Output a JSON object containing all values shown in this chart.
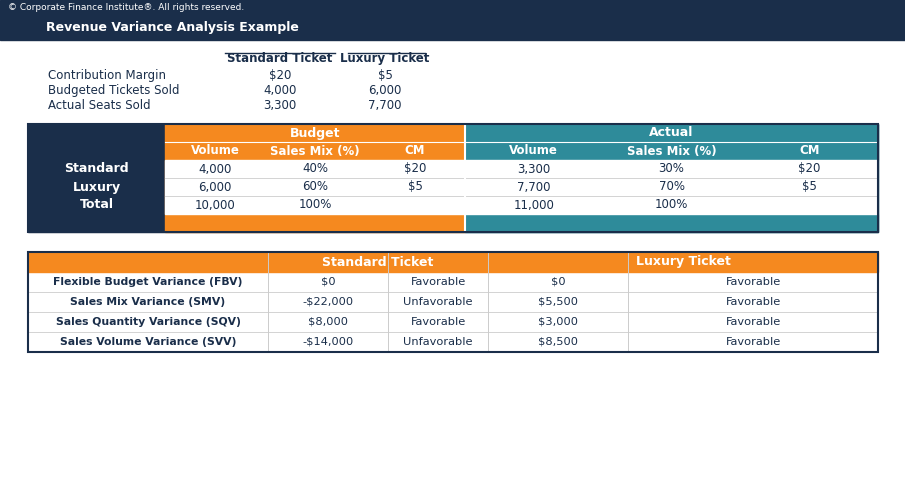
{
  "copyright_text": "© Corporate Finance Institute®. All rights reserved.",
  "title": "Revenue Variance Analysis Example",
  "orange_color": "#f5891f",
  "teal_color": "#2e8b9a",
  "dark_navy": "#1a2e4a",
  "white": "#ffffff",
  "light_text": "#1a2e4a",
  "intro_data": [
    [
      "Contribution Margin",
      "$20",
      "$5"
    ],
    [
      "Budgeted Tickets Sold",
      "4,000",
      "6,000"
    ],
    [
      "Actual Seats Sold",
      "3,300",
      "7,700"
    ]
  ],
  "table1_rows": [
    [
      "Standard",
      "4,000",
      "40%",
      "$20",
      "3,300",
      "30%",
      "$20"
    ],
    [
      "Luxury",
      "6,000",
      "60%",
      "$5",
      "7,700",
      "70%",
      "$5"
    ],
    [
      "Total",
      "10,000",
      "100%",
      "",
      "11,000",
      "100%",
      ""
    ]
  ],
  "table2_rows": [
    [
      "Flexible Budget Variance (FBV)",
      "$0",
      "Favorable",
      "$0",
      "Favorable"
    ],
    [
      "Sales Mix Variance (SMV)",
      "-$22,000",
      "Unfavorable",
      "$5,500",
      "Favorable"
    ],
    [
      "Sales Quantity Variance (SQV)",
      "$8,000",
      "Favorable",
      "$3,000",
      "Favorable"
    ],
    [
      "Sales Volume Variance (SVV)",
      "-$14,000",
      "Unfavorable",
      "$8,500",
      "Favorable"
    ]
  ]
}
